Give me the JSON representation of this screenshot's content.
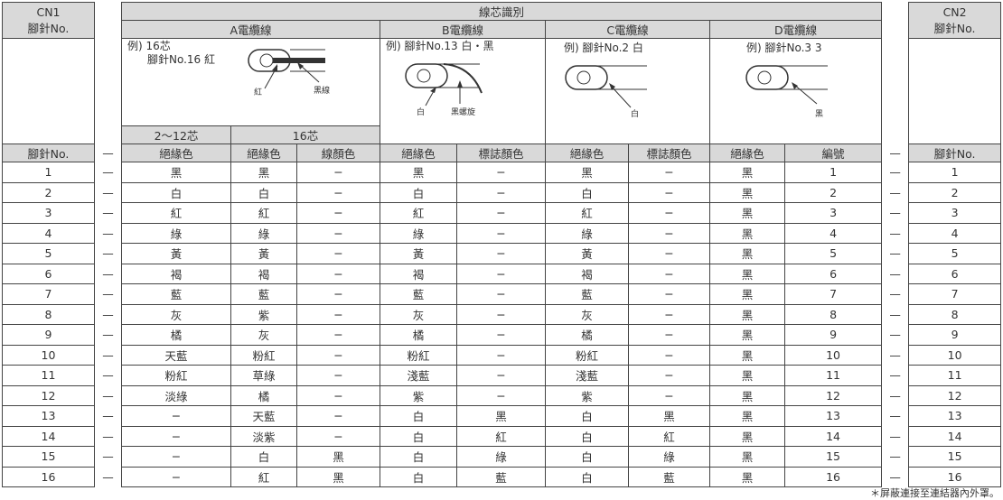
{
  "left_header": {
    "title": "CN1",
    "subtitle": "腳針No."
  },
  "right_header": {
    "title": "CN2",
    "subtitle": "腳針No."
  },
  "main_header": "線芯識別",
  "cables": [
    "A電纜線",
    "B電纜線",
    "C電纜線",
    "D電纜線"
  ],
  "diagrams": {
    "a": {
      "line1": "例) 16芯",
      "line2": "腳針No.16  紅",
      "label_left": "紅",
      "label_right": "黑線"
    },
    "b": {
      "line1": "例) 腳針No.13  白・黑",
      "label_left": "白",
      "label_right": "黑螺旋"
    },
    "c": {
      "line1": "例) 腳針No.2  白",
      "label": "白"
    },
    "d": {
      "line1": "例) 腳針No.3  3",
      "label": "黑"
    }
  },
  "a_subheaders": [
    "2〜12芯",
    "16芯"
  ],
  "column_headers": [
    "腳針No.",
    "—",
    "絕緣色",
    "絕緣色",
    "線顏色",
    "絕緣色",
    "標誌顏色",
    "絕緣色",
    "標誌顏色",
    "絕緣色",
    "編號",
    "—",
    "腳針No."
  ],
  "rows": [
    [
      "1",
      "—",
      "黑",
      "黑",
      "−",
      "黑",
      "−",
      "黑",
      "−",
      "黑",
      "1",
      "—",
      "1"
    ],
    [
      "2",
      "—",
      "白",
      "白",
      "−",
      "白",
      "−",
      "白",
      "−",
      "黑",
      "2",
      "—",
      "2"
    ],
    [
      "3",
      "—",
      "紅",
      "紅",
      "−",
      "紅",
      "−",
      "紅",
      "−",
      "黑",
      "3",
      "—",
      "3"
    ],
    [
      "4",
      "—",
      "綠",
      "綠",
      "−",
      "綠",
      "−",
      "綠",
      "−",
      "黑",
      "4",
      "—",
      "4"
    ],
    [
      "5",
      "—",
      "黃",
      "黃",
      "−",
      "黃",
      "−",
      "黃",
      "−",
      "黑",
      "5",
      "—",
      "5"
    ],
    [
      "6",
      "—",
      "褐",
      "褐",
      "−",
      "褐",
      "−",
      "褐",
      "−",
      "黑",
      "6",
      "—",
      "6"
    ],
    [
      "7",
      "—",
      "藍",
      "藍",
      "−",
      "藍",
      "−",
      "藍",
      "−",
      "黑",
      "7",
      "—",
      "7"
    ],
    [
      "8",
      "—",
      "灰",
      "紫",
      "−",
      "灰",
      "−",
      "灰",
      "−",
      "黑",
      "8",
      "—",
      "8"
    ],
    [
      "9",
      "—",
      "橘",
      "灰",
      "−",
      "橘",
      "−",
      "橘",
      "−",
      "黑",
      "9",
      "—",
      "9"
    ],
    [
      "10",
      "—",
      "天藍",
      "粉紅",
      "−",
      "粉紅",
      "−",
      "粉紅",
      "−",
      "黑",
      "10",
      "—",
      "10"
    ],
    [
      "11",
      "—",
      "粉紅",
      "草綠",
      "−",
      "淺藍",
      "−",
      "淺藍",
      "−",
      "黑",
      "11",
      "—",
      "11"
    ],
    [
      "12",
      "—",
      "淡綠",
      "橘",
      "−",
      "紫",
      "−",
      "紫",
      "−",
      "黑",
      "12",
      "—",
      "12"
    ],
    [
      "13",
      "—",
      "−",
      "天藍",
      "−",
      "白",
      "黑",
      "白",
      "黑",
      "黑",
      "13",
      "—",
      "13"
    ],
    [
      "14",
      "—",
      "−",
      "淡紫",
      "−",
      "白",
      "紅",
      "白",
      "紅",
      "黑",
      "14",
      "—",
      "14"
    ],
    [
      "15",
      "—",
      "−",
      "白",
      "黑",
      "白",
      "綠",
      "白",
      "綠",
      "黑",
      "15",
      "—",
      "15"
    ],
    [
      "16",
      "—",
      "−",
      "紅",
      "黑",
      "白",
      "藍",
      "白",
      "藍",
      "黑",
      "16",
      "—",
      "16"
    ]
  ],
  "footnote": "＊屏蔽連接至連結器內外罩。"
}
